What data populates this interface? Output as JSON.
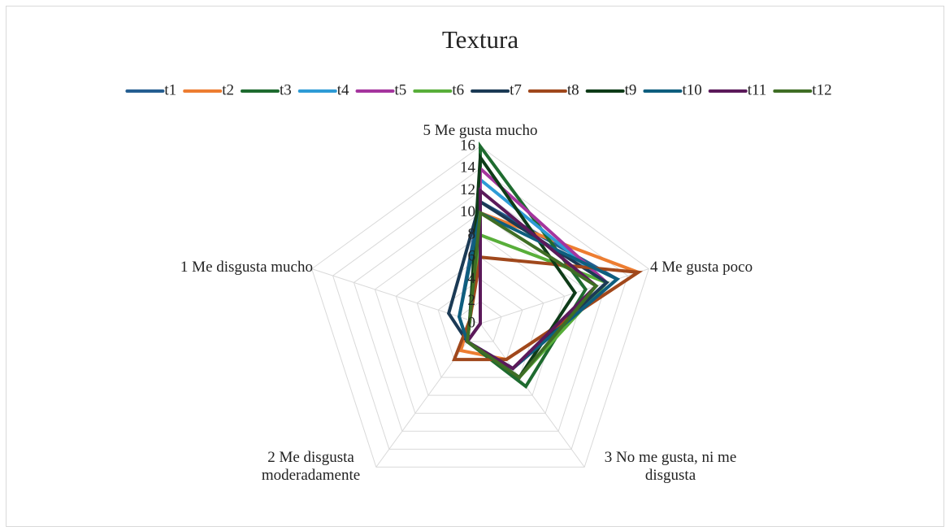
{
  "chart_data": {
    "type": "radar",
    "title": "Textura",
    "categories": [
      "5 Me gusta mucho",
      "4 Me gusta poco",
      "3 No me gusta, ni me disgusta",
      "2 Me disgusta moderadamente",
      "1 Me disgusta mucho"
    ],
    "ylim": [
      0,
      16
    ],
    "yticks": [
      0,
      2,
      4,
      6,
      8,
      10,
      12,
      14,
      16
    ],
    "grid": true,
    "legend": "top",
    "series": [
      {
        "name": "t1",
        "color": "#255e91",
        "values": [
          11,
          13,
          5,
          2,
          2
        ]
      },
      {
        "name": "t2",
        "color": "#ed7d31",
        "values": [
          10,
          15,
          4,
          3,
          1
        ]
      },
      {
        "name": "t3",
        "color": "#1e6b2f",
        "values": [
          16,
          10,
          7,
          2,
          0
        ]
      },
      {
        "name": "t4",
        "color": "#2e9bd6",
        "values": [
          13,
          12,
          5,
          2,
          1
        ]
      },
      {
        "name": "t5",
        "color": "#a5359e",
        "values": [
          14,
          12,
          5,
          2,
          0
        ]
      },
      {
        "name": "t6",
        "color": "#58ae3a",
        "values": [
          8,
          12,
          6,
          2,
          1
        ]
      },
      {
        "name": "t7",
        "color": "#1b3a55",
        "values": [
          11,
          12,
          5,
          2,
          3
        ]
      },
      {
        "name": "t8",
        "color": "#a0481c",
        "values": [
          6,
          15,
          4,
          4,
          1
        ]
      },
      {
        "name": "t9",
        "color": "#0e3b18",
        "values": [
          15,
          9,
          6,
          2,
          1
        ]
      },
      {
        "name": "t10",
        "color": "#0e5e7e",
        "values": [
          10,
          13,
          5,
          2,
          2
        ]
      },
      {
        "name": "t11",
        "color": "#5b1a5a",
        "values": [
          12,
          11,
          5,
          2,
          0
        ]
      },
      {
        "name": "t12",
        "color": "#3f6e25",
        "values": [
          10,
          11,
          6,
          2,
          1
        ]
      }
    ]
  }
}
